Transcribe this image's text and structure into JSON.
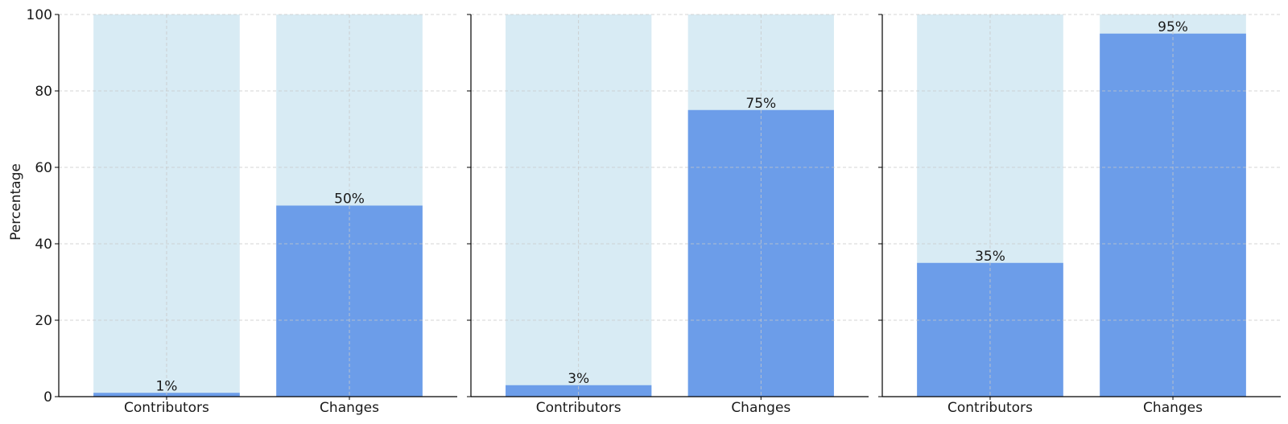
{
  "chart_data": {
    "type": "bar",
    "ylabel": "Percentage",
    "ylim": [
      0,
      100
    ],
    "yticks": [
      0,
      20,
      40,
      60,
      80,
      100
    ],
    "grid": true,
    "colors": {
      "background_bar": "#d8ebf4",
      "value_bar": "#6c9de9",
      "grid": "#c8c8c8",
      "axis": "#000000"
    },
    "panels": [
      {
        "categories": [
          "Contributors",
          "Changes"
        ],
        "values": [
          1,
          50
        ],
        "labels": [
          "1%",
          "50%"
        ]
      },
      {
        "categories": [
          "Contributors",
          "Changes"
        ],
        "values": [
          3,
          75
        ],
        "labels": [
          "3%",
          "75%"
        ]
      },
      {
        "categories": [
          "Contributors",
          "Changes"
        ],
        "values": [
          35,
          95
        ],
        "labels": [
          "35%",
          "95%"
        ]
      }
    ]
  }
}
